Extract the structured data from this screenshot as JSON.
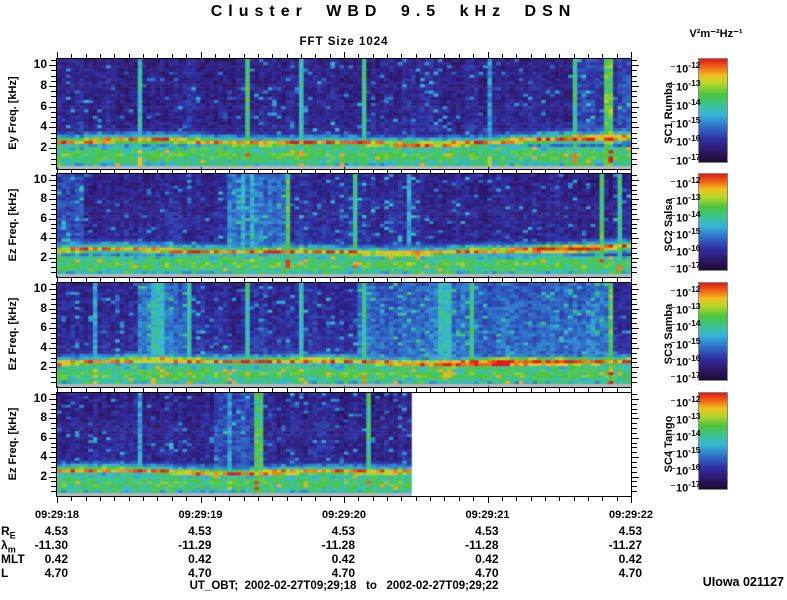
{
  "chart_data": {
    "type": "heatmap",
    "title": "Cluster WBD 9.5 kHz DSN",
    "subtitle": "FFT Size 1024",
    "unit_label": "V²m⁻²Hz⁻¹",
    "x_axis": {
      "tick_labels": [
        "09:29:18",
        "09:29:19",
        "09:29:20",
        "09:29:21",
        "09:29:22"
      ],
      "minor_ticks_per_second": 10
    },
    "y_axis": {
      "major_ticks": [
        2,
        4,
        6,
        8,
        10
      ],
      "minor_step_khz": 0.5,
      "range_khz": [
        0,
        10.6
      ]
    },
    "colorbar": {
      "exponents": [
        "-12",
        "-13",
        "-14",
        "-15",
        "-16",
        "-17"
      ],
      "base": "10",
      "scale_min": "1e-17",
      "scale_max": "1e-12"
    },
    "panels": [
      {
        "sc_label": "SC1 Rumba",
        "y_label": "Ey Freq. [kHz]",
        "seed": 101,
        "data_end": 1.0,
        "band_center_khz": 2.35,
        "end_rise_khz": 0.5,
        "bg": 0.14,
        "blob": {
          "t": 0.95,
          "w": 0.06,
          "b": 0.5
        },
        "bright_regions": [
          [
            0.9,
            1.0,
            0.08
          ]
        ],
        "spikes": [
          [
            0.138,
            1,
            0.48
          ],
          [
            0.331,
            1,
            0.6
          ],
          [
            0.425,
            1,
            0.52
          ],
          [
            0.531,
            1,
            0.55
          ],
          [
            0.749,
            1,
            0.4
          ],
          [
            0.902,
            1,
            0.55
          ],
          [
            0.958,
            2,
            0.66
          ]
        ]
      },
      {
        "sc_label": "SC2 Salsa",
        "y_label": "Ez Freq. [kHz]",
        "seed": 202,
        "data_end": 1.0,
        "band_center_khz": 2.4,
        "end_rise_khz": 0.45,
        "bg": 0.15,
        "blob": {
          "t": 0.88,
          "w": 0.07,
          "b": 0.8
        },
        "bright_regions": [
          [
            0.3,
            0.4,
            0.14
          ],
          [
            0.0,
            0.05,
            0.1
          ]
        ],
        "spikes": [
          [
            0.324,
            1,
            0.45
          ],
          [
            0.336,
            1,
            0.45
          ],
          [
            0.397,
            1,
            0.62
          ],
          [
            0.514,
            1,
            0.58
          ],
          [
            0.606,
            1,
            0.42
          ],
          [
            0.942,
            1,
            0.62
          ],
          [
            0.98,
            1,
            0.55
          ]
        ]
      },
      {
        "sc_label": "SC3 Samba",
        "y_label": "Ez Freq. [kHz]",
        "seed": 303,
        "data_end": 1.0,
        "band_center_khz": 2.3,
        "end_rise_khz": 0.15,
        "bg": 0.16,
        "blob": {
          "t": 0.78,
          "w": 0.14,
          "b": 0.9
        },
        "bright_regions": [
          [
            0.52,
            0.97,
            0.13
          ],
          [
            0.14,
            0.23,
            0.15
          ]
        ],
        "spikes": [
          [
            0.063,
            1,
            0.45
          ],
          [
            0.17,
            3,
            0.5
          ],
          [
            0.223,
            1,
            0.52
          ],
          [
            0.331,
            1,
            0.55
          ],
          [
            0.425,
            1,
            0.5
          ],
          [
            0.528,
            1,
            0.55
          ],
          [
            0.675,
            3,
            0.5
          ],
          [
            0.719,
            1,
            0.58
          ],
          [
            0.963,
            1,
            0.65
          ]
        ]
      },
      {
        "sc_label": "SC4 Tango",
        "y_label": "Ez Freq. [kHz]",
        "seed": 404,
        "data_end": 0.62,
        "band_center_khz": 2.3,
        "end_rise_khz": 0.0,
        "bg": 0.14,
        "blob": null,
        "bright_regions": [
          [
            0.27,
            0.34,
            0.08
          ]
        ],
        "spikes": [
          [
            0.138,
            1,
            0.42
          ],
          [
            0.3,
            1,
            0.4
          ],
          [
            0.345,
            2,
            0.62
          ],
          [
            0.536,
            1,
            0.58
          ]
        ]
      }
    ],
    "ephemeris": {
      "rows": [
        {
          "label": "R",
          "sub": "E",
          "values": [
            "4.53",
            "4.53",
            "4.53",
            "4.53",
            "4.53"
          ]
        },
        {
          "label": "λ",
          "sub": "m",
          "values": [
            "-11.30",
            "-11.29",
            "-11.28",
            "-11.28",
            "-11.27"
          ]
        },
        {
          "label": "MLT",
          "sub": "",
          "values": [
            "0.42",
            "0.42",
            "0.42",
            "0.42",
            "0.42"
          ]
        },
        {
          "label": "L",
          "sub": "",
          "values": [
            "4.70",
            "4.70",
            "4.70",
            "4.70",
            "4.70"
          ]
        }
      ]
    },
    "footer": "UT_OBT;  2002-02-27T09;29;18   to   2002-02-27T09;29;22",
    "credit": "UIowa 021127"
  }
}
